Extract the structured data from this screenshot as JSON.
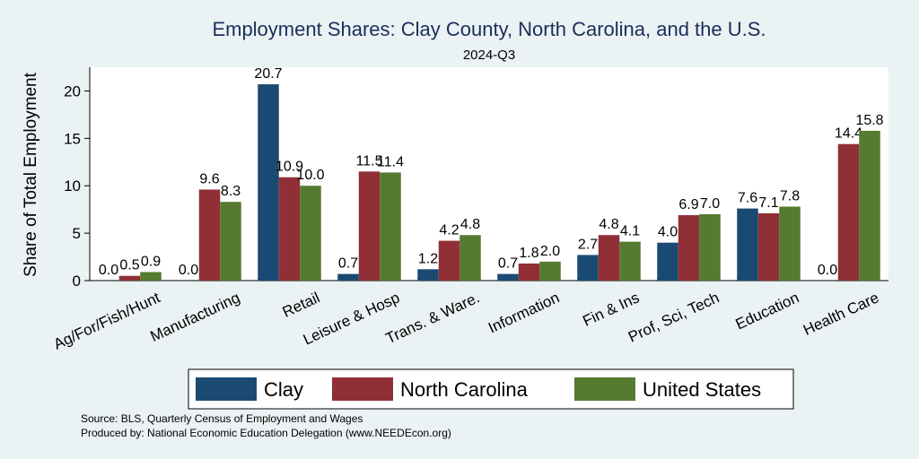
{
  "chart_data": {
    "type": "bar",
    "title": "Employment Shares: Clay County, North Carolina, and the U.S.",
    "subtitle": "2024-Q3",
    "ylabel": "Share of Total Employment",
    "xlabel": "",
    "ylim": [
      0,
      22.5
    ],
    "yticks": [
      0,
      5,
      10,
      15,
      20
    ],
    "categories": [
      "Ag/For/Fish/Hunt",
      "Manufacturing",
      "Retail",
      "Leisure & Hosp",
      "Trans. & Ware.",
      "Information",
      "Fin & Ins",
      "Prof, Sci, Tech",
      "Education",
      "Health Care"
    ],
    "series": [
      {
        "name": "Clay",
        "color": "#1a4a72",
        "values": [
          0.0,
          0.0,
          20.7,
          0.7,
          1.2,
          0.7,
          2.7,
          4.0,
          7.6,
          0.0
        ]
      },
      {
        "name": "North Carolina",
        "color": "#903036",
        "values": [
          0.5,
          9.6,
          10.9,
          11.5,
          4.2,
          1.8,
          4.8,
          6.9,
          7.1,
          14.4
        ]
      },
      {
        "name": "United States",
        "color": "#557a30",
        "values": [
          0.9,
          8.3,
          10.0,
          11.4,
          4.8,
          2.0,
          4.1,
          7.0,
          7.8,
          15.8
        ]
      }
    ],
    "legend_position": "bottom",
    "grid": false
  },
  "notes": {
    "source": "Source: BLS, Quarterly Census of Employment and Wages",
    "produced": "Produced by: National Economic Education Delegation (www.NEEDEcon.org)"
  }
}
